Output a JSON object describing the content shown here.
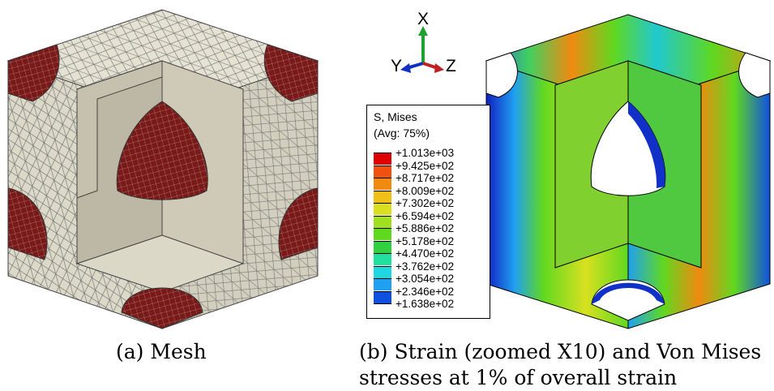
{
  "figure": {
    "caption_a": "(a) Mesh",
    "caption_b_line1": "(b) Strain (zoomed X10) and Von Mises",
    "caption_b_line2": "stresses at 1% of overall strain"
  },
  "triad": {
    "x": "X",
    "y": "Y",
    "z": "Z"
  },
  "legend": {
    "title": "S, Mises",
    "subtitle": "(Avg: 75%)",
    "levels": [
      "+1.013e+03",
      "+9.425e+02",
      "+8.717e+02",
      "+8.009e+02",
      "+7.302e+02",
      "+6.594e+02",
      "+5.886e+02",
      "+5.178e+02",
      "+4.470e+02",
      "+3.762e+02",
      "+3.054e+02",
      "+2.346e+02",
      "+1.638e+02"
    ],
    "colors": [
      "#e00000",
      "#f05010",
      "#f08a10",
      "#f0c018",
      "#d8e020",
      "#a0e020",
      "#60d820",
      "#30d040",
      "#20e0a0",
      "#20d8e0",
      "#20a0f0",
      "#1050e0",
      "#1020c0"
    ]
  },
  "colors": {
    "mesh_face": "#e6e2d3",
    "mesh_face_dark": "#c9c4b2",
    "mesh_inclusion": "#7a1a18",
    "mesh_line": "#6e6e6e"
  }
}
